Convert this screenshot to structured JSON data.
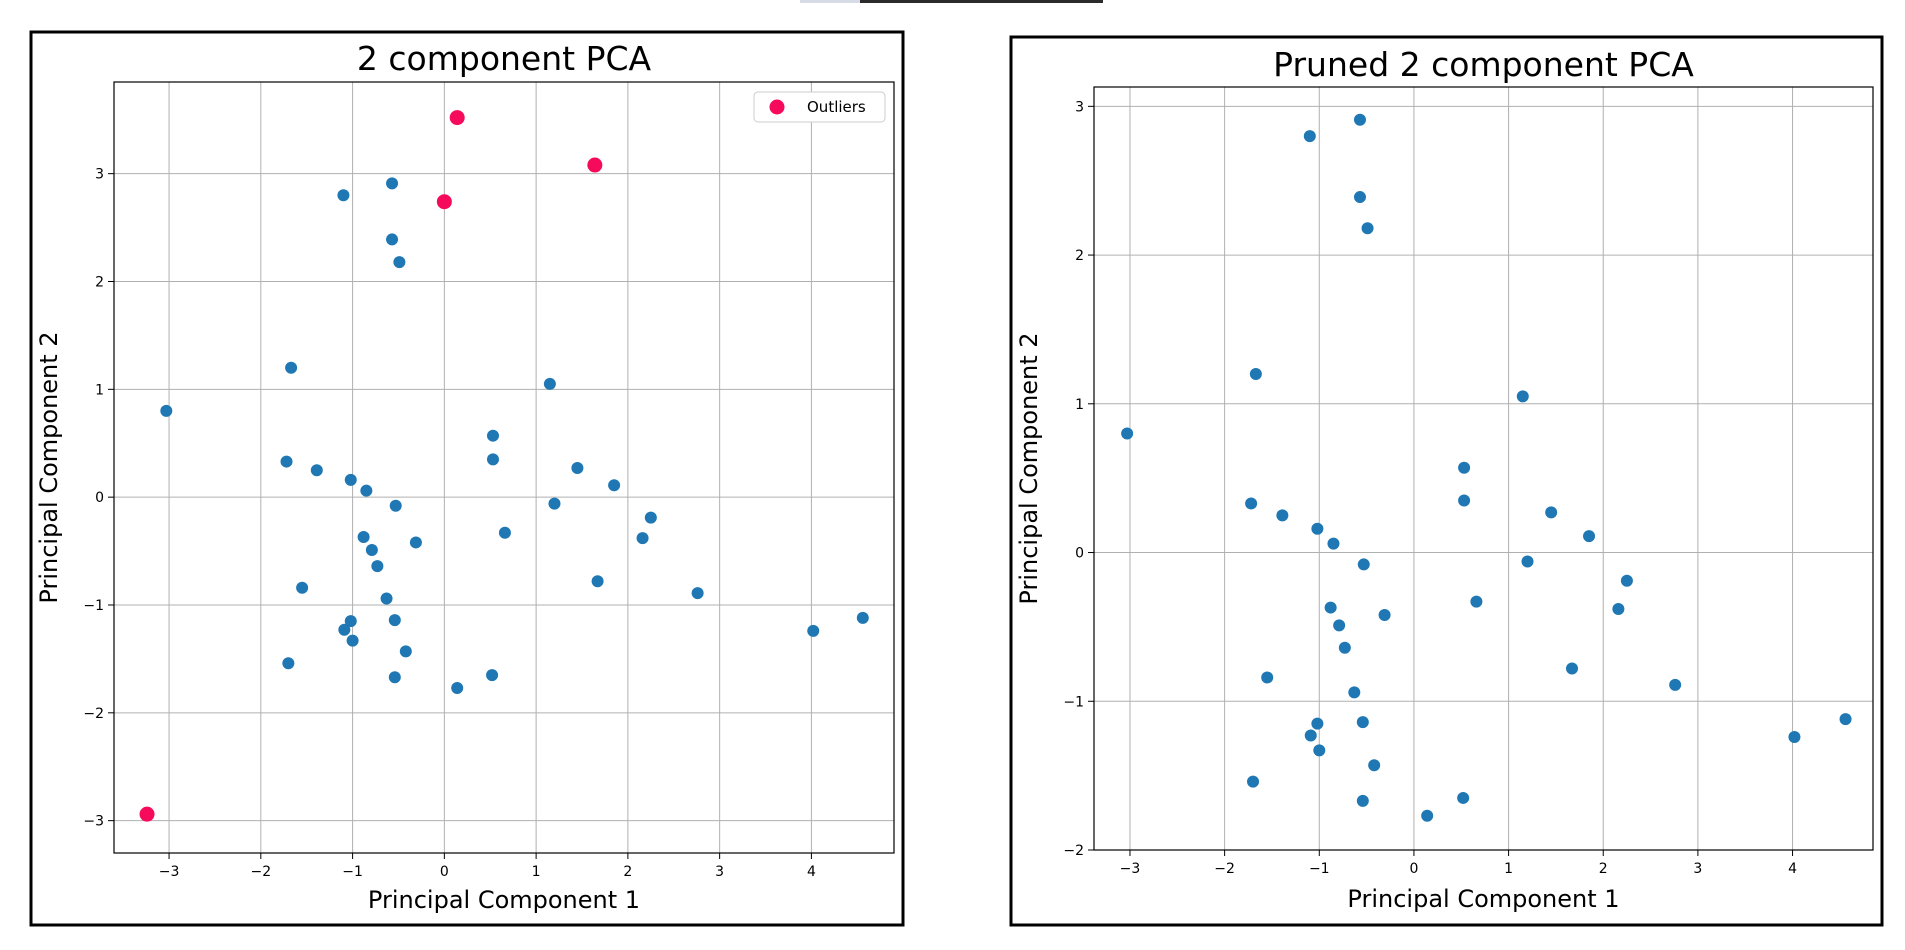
{
  "colors": {
    "points": "#1f77b4",
    "outliers": "#f50a5c"
  },
  "chart_data": [
    {
      "type": "scatter",
      "title": "2 component PCA",
      "xlabel": "Principal Component 1",
      "ylabel": "Principal Component 2",
      "xlim": [
        -3.6,
        4.9
      ],
      "ylim": [
        -3.3,
        3.85
      ],
      "xticks": [
        -3,
        -2,
        -1,
        0,
        1,
        2,
        3,
        4
      ],
      "yticks": [
        -3,
        -2,
        -1,
        0,
        1,
        2,
        3
      ],
      "grid": true,
      "legend": {
        "position": "top-right",
        "entries": [
          "Outliers"
        ]
      },
      "series": [
        {
          "points": [
            [
              -1.1,
              2.8
            ],
            [
              -0.57,
              2.91
            ],
            [
              -0.57,
              2.39
            ],
            [
              -0.49,
              2.18
            ],
            [
              -1.67,
              1.2
            ],
            [
              -3.03,
              0.8
            ],
            [
              1.15,
              1.05
            ],
            [
              0.53,
              0.57
            ],
            [
              0.53,
              0.35
            ],
            [
              1.45,
              0.27
            ],
            [
              1.85,
              0.11
            ],
            [
              -1.72,
              0.33
            ],
            [
              -1.39,
              0.25
            ],
            [
              -1.02,
              0.16
            ],
            [
              -0.85,
              0.06
            ],
            [
              -0.53,
              -0.08
            ],
            [
              1.2,
              -0.06
            ],
            [
              2.25,
              -0.19
            ],
            [
              2.16,
              -0.38
            ],
            [
              0.66,
              -0.33
            ],
            [
              -0.31,
              -0.42
            ],
            [
              -0.88,
              -0.37
            ],
            [
              -0.79,
              -0.49
            ],
            [
              -0.73,
              -0.64
            ],
            [
              1.67,
              -0.78
            ],
            [
              2.76,
              -0.89
            ],
            [
              -1.55,
              -0.84
            ],
            [
              -0.63,
              -0.94
            ],
            [
              -1.02,
              -1.15
            ],
            [
              -0.54,
              -1.14
            ],
            [
              -1.09,
              -1.23
            ],
            [
              -1.0,
              -1.33
            ],
            [
              -0.42,
              -1.43
            ],
            [
              4.02,
              -1.24
            ],
            [
              4.56,
              -1.12
            ],
            [
              -1.7,
              -1.54
            ],
            [
              -0.54,
              -1.67
            ],
            [
              0.52,
              -1.65
            ],
            [
              0.14,
              -1.77
            ]
          ]
        },
        {
          "name": "Outliers",
          "points": [
            [
              0.14,
              3.52
            ],
            [
              1.64,
              3.08
            ],
            [
              0.0,
              2.74
            ],
            [
              -3.24,
              -2.94
            ]
          ]
        }
      ]
    },
    {
      "type": "scatter",
      "title": "Pruned 2 component PCA",
      "xlabel": "Principal Component 1",
      "ylabel": "Principal Component 2",
      "xlim": [
        -3.38,
        4.85
      ],
      "ylim": [
        -2.0,
        3.13
      ],
      "xticks": [
        -3,
        -2,
        -1,
        0,
        1,
        2,
        3,
        4
      ],
      "yticks": [
        -2,
        -1,
        0,
        1,
        2,
        3
      ],
      "grid": true,
      "series": [
        {
          "points": [
            [
              -1.1,
              2.8
            ],
            [
              -0.57,
              2.91
            ],
            [
              -0.57,
              2.39
            ],
            [
              -0.49,
              2.18
            ],
            [
              -1.67,
              1.2
            ],
            [
              -3.03,
              0.8
            ],
            [
              1.15,
              1.05
            ],
            [
              0.53,
              0.57
            ],
            [
              0.53,
              0.35
            ],
            [
              1.45,
              0.27
            ],
            [
              1.85,
              0.11
            ],
            [
              -1.72,
              0.33
            ],
            [
              -1.39,
              0.25
            ],
            [
              -1.02,
              0.16
            ],
            [
              -0.85,
              0.06
            ],
            [
              -0.53,
              -0.08
            ],
            [
              1.2,
              -0.06
            ],
            [
              2.25,
              -0.19
            ],
            [
              2.16,
              -0.38
            ],
            [
              0.66,
              -0.33
            ],
            [
              -0.31,
              -0.42
            ],
            [
              -0.88,
              -0.37
            ],
            [
              -0.79,
              -0.49
            ],
            [
              -0.73,
              -0.64
            ],
            [
              1.67,
              -0.78
            ],
            [
              2.76,
              -0.89
            ],
            [
              -1.55,
              -0.84
            ],
            [
              -0.63,
              -0.94
            ],
            [
              -1.02,
              -1.15
            ],
            [
              -0.54,
              -1.14
            ],
            [
              -1.09,
              -1.23
            ],
            [
              -1.0,
              -1.33
            ],
            [
              -0.42,
              -1.43
            ],
            [
              4.02,
              -1.24
            ],
            [
              4.56,
              -1.12
            ],
            [
              -1.7,
              -1.54
            ],
            [
              -0.54,
              -1.67
            ],
            [
              0.52,
              -1.65
            ],
            [
              0.14,
              -1.77
            ]
          ]
        }
      ]
    }
  ]
}
